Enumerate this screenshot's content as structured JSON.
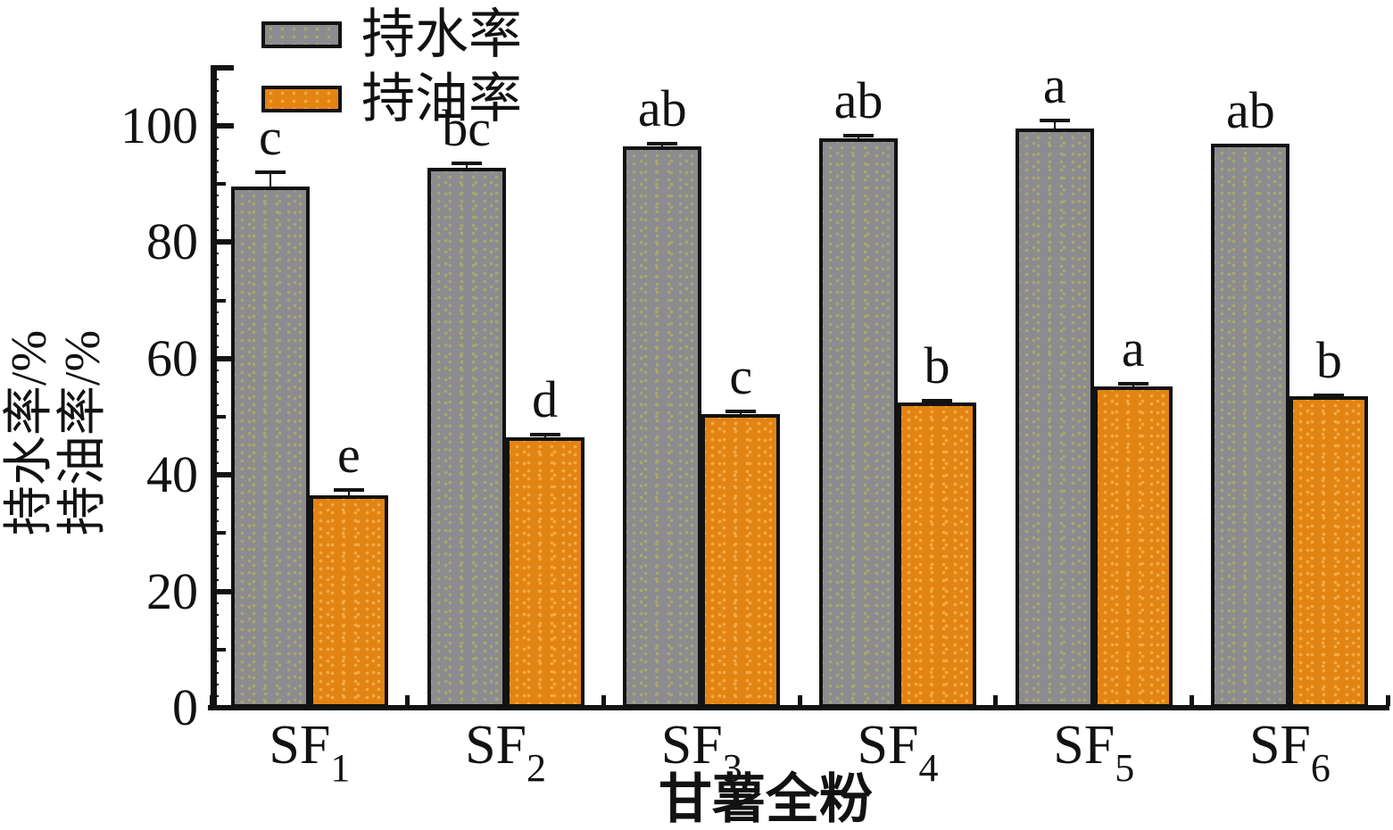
{
  "chart_data": {
    "type": "bar",
    "title": "",
    "xlabel": "甘薯全粉",
    "ylabel_lines": [
      "持水率/%",
      "持油率/%"
    ],
    "ylim": [
      0,
      110
    ],
    "yticks": [
      0,
      20,
      40,
      60,
      80,
      100
    ],
    "grid": false,
    "legend_position": "top-left",
    "axis_color": "#121212",
    "categories": [
      {
        "base": "SF",
        "sub": "1"
      },
      {
        "base": "SF",
        "sub": "2"
      },
      {
        "base": "SF",
        "sub": "3"
      },
      {
        "base": "SF",
        "sub": "4"
      },
      {
        "base": "SF",
        "sub": "5"
      },
      {
        "base": "SF",
        "sub": "6"
      }
    ],
    "series": [
      {
        "key": "water",
        "name": "持水率",
        "color": "#8b8b90",
        "dot_color": "#a9a76b",
        "values": [
          89.5,
          92.8,
          96.5,
          97.8,
          99.5,
          97.0
        ],
        "errors": [
          2.9,
          1.0,
          0.8,
          0.8,
          1.8,
          0
        ],
        "sig_letters": [
          "c",
          "bc",
          "ab",
          "ab",
          "a",
          "ab"
        ]
      },
      {
        "key": "oil",
        "name": "持油率",
        "color": "#e28413",
        "dot_color": "#f5a945",
        "values": [
          36.5,
          46.5,
          50.5,
          52.5,
          55.2,
          53.5
        ],
        "errors": [
          1.2,
          0.8,
          0.8,
          0.6,
          0.8,
          0.5
        ],
        "sig_letters": [
          "e",
          "d",
          "c",
          "b",
          "a",
          "b"
        ]
      }
    ]
  }
}
